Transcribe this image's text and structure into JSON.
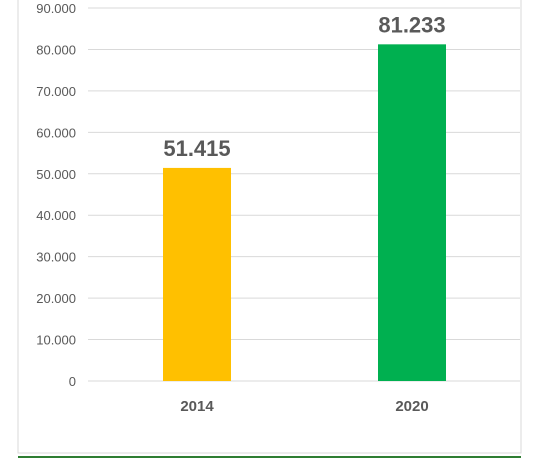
{
  "chart_data": {
    "type": "bar",
    "title": "",
    "xlabel": "",
    "ylabel": "",
    "categories": [
      "2014",
      "2020"
    ],
    "values": [
      51415,
      81233
    ],
    "value_labels": [
      "51.415",
      "81.233"
    ],
    "ylim": [
      0,
      90000
    ],
    "yticks": [
      0,
      10000,
      20000,
      30000,
      40000,
      50000,
      60000,
      70000,
      80000,
      90000
    ],
    "ytick_labels": [
      "0",
      "10.000",
      "20.000",
      "30.000",
      "40.000",
      "50.000",
      "60.000",
      "70.000",
      "80.000",
      "90.000"
    ],
    "bar_colors": [
      "#FFC000",
      "#00B050"
    ],
    "grid": true,
    "legend": "none"
  },
  "colors": {
    "gridline": "#D9D9D9",
    "text": "#595959",
    "footer_rule": "#2E7D32",
    "frame": "#D9D9D9"
  }
}
